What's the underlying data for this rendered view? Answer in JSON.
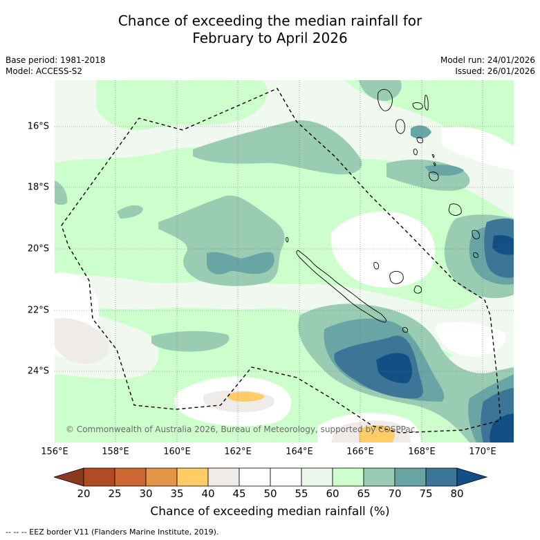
{
  "title": {
    "line1": "Chance of exceeding the median rainfall for",
    "line2": "February to April 2026"
  },
  "meta": {
    "base_period": "Base period: 1981-2018",
    "model": "Model: ACCESS-S2",
    "model_run": "Model run: 24/01/2026",
    "issued": "Issued: 26/01/2026"
  },
  "map": {
    "lat_labels": [
      "16°S",
      "18°S",
      "20°S",
      "22°S",
      "24°S"
    ],
    "lon_labels": [
      "156°E",
      "158°E",
      "160°E",
      "162°E",
      "164°E",
      "166°E",
      "168°E",
      "170°E"
    ],
    "copyright": "© Commonwealth of Australia 2026, Bureau of Meteorology, supported by COSPPac",
    "colors": {
      "c20": "#8b3a1f",
      "c25": "#b04b24",
      "c30": "#cc6633",
      "c35": "#e39548",
      "c40": "#ffcc66",
      "c45": "#efebe8",
      "c50": "#ffffff",
      "c55": "#ffffff",
      "c60": "#ecf7ec",
      "c65": "#ccffcc",
      "c70": "#99ccb3",
      "c75": "#6aa5a5",
      "c80": "#3d7599",
      "c85": "#124f85"
    }
  },
  "colorbar": {
    "ticks": [
      "20",
      "25",
      "30",
      "35",
      "40",
      "45",
      "50",
      "55",
      "60",
      "65",
      "70",
      "75",
      "80"
    ],
    "label": "Chance of exceeding median rainfall (%)"
  },
  "legend_note": "--  --  -- EEZ border V11 (Flanders Marine Institute, 2019)."
}
